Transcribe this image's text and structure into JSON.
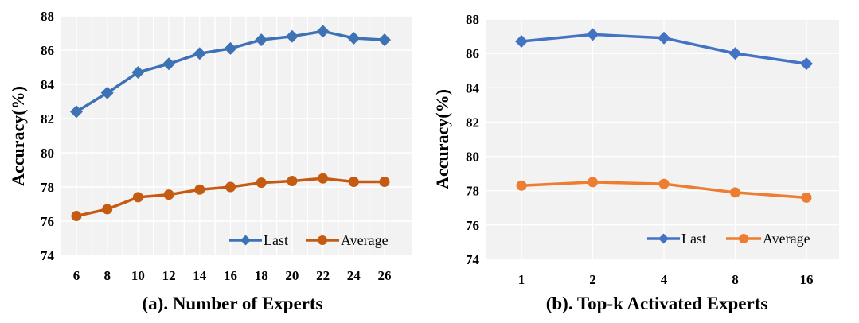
{
  "chart_data": [
    {
      "type": "line",
      "title": "(a). Number of Experts",
      "xlabel": "(a). Number of Experts",
      "ylabel": "Accuracy(%)",
      "categories": [
        "6",
        "8",
        "10",
        "12",
        "14",
        "16",
        "18",
        "20",
        "22",
        "24",
        "26"
      ],
      "ylim": [
        74,
        88
      ],
      "yticks": [
        "74",
        "76",
        "78",
        "80",
        "82",
        "84",
        "86",
        "88"
      ],
      "grid": true,
      "legend_position": "bottom-right",
      "series": [
        {
          "name": "Last",
          "values": [
            82.4,
            83.5,
            84.7,
            85.2,
            85.8,
            86.1,
            86.6,
            86.8,
            87.1,
            86.7,
            86.6
          ],
          "color": "#3d72b4",
          "marker": "diamond"
        },
        {
          "name": "Average",
          "values": [
            76.3,
            76.7,
            77.4,
            77.55,
            77.85,
            78.0,
            78.25,
            78.35,
            78.5,
            78.3,
            78.3
          ],
          "color": "#c55a11",
          "marker": "circle"
        }
      ]
    },
    {
      "type": "line",
      "title": "(b). Top-k Activated Experts",
      "xlabel": "(b). Top-k Activated Experts",
      "ylabel": "Accuracy(%)",
      "categories": [
        "1",
        "2",
        "4",
        "8",
        "16"
      ],
      "ylim": [
        74,
        88
      ],
      "yticks": [
        "74",
        "76",
        "78",
        "80",
        "82",
        "84",
        "86",
        "88"
      ],
      "grid": true,
      "legend_position": "bottom-right",
      "series": [
        {
          "name": "Last",
          "values": [
            86.7,
            87.1,
            86.9,
            86.0,
            85.4
          ],
          "color": "#4472c4",
          "marker": "diamond"
        },
        {
          "name": "Average",
          "values": [
            78.3,
            78.5,
            78.4,
            77.9,
            77.6
          ],
          "color": "#ed7d31",
          "marker": "circle"
        }
      ]
    }
  ]
}
